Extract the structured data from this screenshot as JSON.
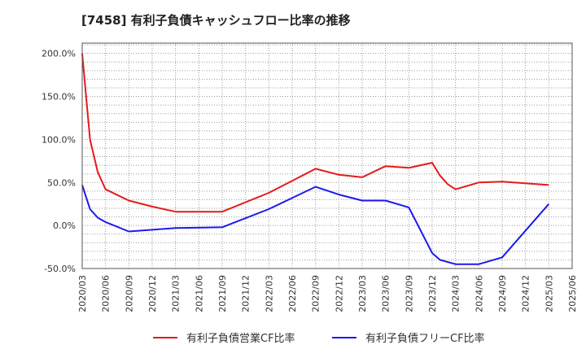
{
  "title": "[7458]  有利子負債キャッシュフロー比率の推移",
  "chart_data": {
    "type": "line",
    "title": "[7458]  有利子負債キャッシュフロー比率の推移",
    "x_ticks": [
      "2020/03",
      "2020/06",
      "2020/09",
      "2020/12",
      "2021/03",
      "2021/06",
      "2021/09",
      "2021/12",
      "2022/03",
      "2022/06",
      "2022/09",
      "2022/12",
      "2023/03",
      "2023/06",
      "2023/09",
      "2023/12",
      "2024/03",
      "2024/06",
      "2024/09",
      "2024/12",
      "2025/03",
      "2025/06"
    ],
    "y_ticks": [
      "-50.0%",
      "0.0%",
      "50.0%",
      "100.0%",
      "150.0%",
      "200.0%"
    ],
    "ylim": [
      -50,
      212
    ],
    "grid": true,
    "legend_position": "bottom",
    "series": [
      {
        "name": "有利子負債営業CF比率",
        "color": "#e41a1c",
        "points": [
          [
            "2020/03",
            200
          ],
          [
            "2020/04",
            100
          ],
          [
            "2020/05",
            62
          ],
          [
            "2020/06",
            42
          ],
          [
            "2020/09",
            29
          ],
          [
            "2020/12",
            22
          ],
          [
            "2021/03",
            16
          ],
          [
            "2021/06",
            16
          ],
          [
            "2021/09",
            16
          ],
          [
            "2022/03",
            38
          ],
          [
            "2022/09",
            66
          ],
          [
            "2022/12",
            59
          ],
          [
            "2023/03",
            56
          ],
          [
            "2023/06",
            69
          ],
          [
            "2023/09",
            67
          ],
          [
            "2023/12",
            73
          ],
          [
            "2024/01",
            58
          ],
          [
            "2024/02",
            48
          ],
          [
            "2024/03",
            42
          ],
          [
            "2024/06",
            50
          ],
          [
            "2024/09",
            51
          ],
          [
            "2025/03",
            47
          ]
        ]
      },
      {
        "name": "有利子負債フリーCF比率",
        "color": "#1a1aee",
        "points": [
          [
            "2020/03",
            47
          ],
          [
            "2020/04",
            19
          ],
          [
            "2020/05",
            9
          ],
          [
            "2020/06",
            4
          ],
          [
            "2020/09",
            -7
          ],
          [
            "2021/03",
            -3
          ],
          [
            "2021/09",
            -2
          ],
          [
            "2022/03",
            19
          ],
          [
            "2022/09",
            45
          ],
          [
            "2022/12",
            36
          ],
          [
            "2023/03",
            29
          ],
          [
            "2023/06",
            29
          ],
          [
            "2023/09",
            21
          ],
          [
            "2023/12",
            -32
          ],
          [
            "2024/01",
            -40
          ],
          [
            "2024/03",
            -45
          ],
          [
            "2024/06",
            -45
          ],
          [
            "2024/09",
            -37
          ],
          [
            "2025/03",
            25
          ]
        ]
      }
    ]
  }
}
